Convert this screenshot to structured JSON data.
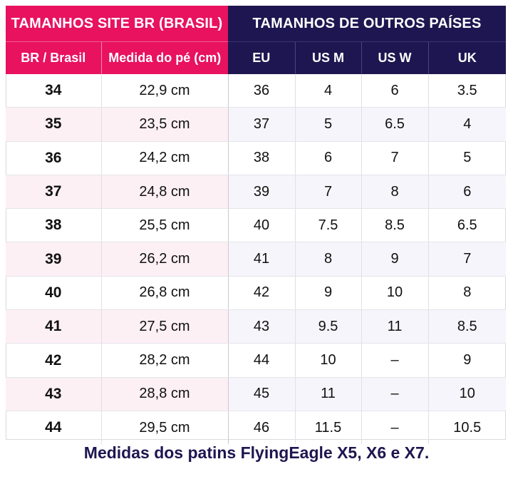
{
  "headers": {
    "group_br": "TAMANHOS SITE BR (BRASIL)",
    "group_other": "TAMANHOS DE OUTROS PAÍSES",
    "columns": [
      "BR / Brasil",
      "Medida do pé (cm)",
      "EU",
      "US M",
      "US W",
      "UK"
    ]
  },
  "rows": [
    [
      "34",
      "22,9 cm",
      "36",
      "4",
      "6",
      "3.5"
    ],
    [
      "35",
      "23,5 cm",
      "37",
      "5",
      "6.5",
      "4"
    ],
    [
      "36",
      "24,2 cm",
      "38",
      "6",
      "7",
      "5"
    ],
    [
      "37",
      "24,8 cm",
      "39",
      "7",
      "8",
      "6"
    ],
    [
      "38",
      "25,5 cm",
      "40",
      "7.5",
      "8.5",
      "6.5"
    ],
    [
      "39",
      "26,2 cm",
      "41",
      "8",
      "9",
      "7"
    ],
    [
      "40",
      "26,8 cm",
      "42",
      "9",
      "10",
      "8"
    ],
    [
      "41",
      "27,5 cm",
      "43",
      "9.5",
      "11",
      "8.5"
    ],
    [
      "42",
      "28,2 cm",
      "44",
      "10",
      "–",
      "9"
    ],
    [
      "43",
      "28,8 cm",
      "45",
      "11",
      "–",
      "10"
    ],
    [
      "44",
      "29,5 cm",
      "46",
      "11.5",
      "–",
      "10.5"
    ]
  ],
  "footer": "Medidas dos patins FlyingEagle X5, X6 e X7.",
  "colors": {
    "br_header": "#e8125f",
    "other_header": "#1e1650"
  }
}
